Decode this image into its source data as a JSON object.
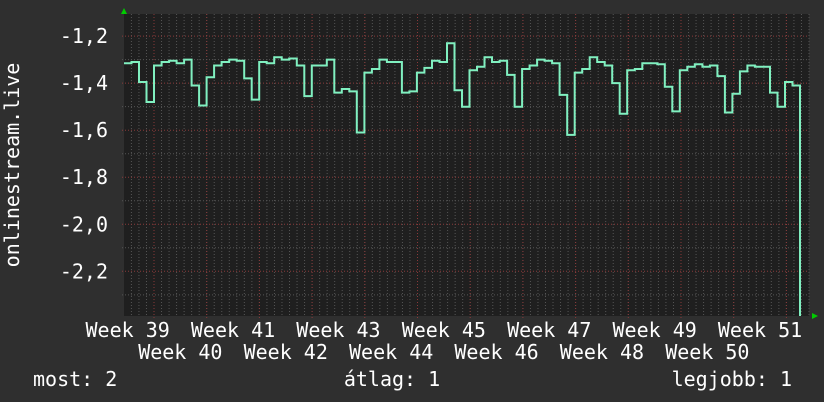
{
  "chart_data": {
    "type": "line",
    "title": "",
    "ylabel": "onlinestream.live",
    "xlabel": "",
    "ylim": [
      -2.39,
      -1.106
    ],
    "y_ticks": [
      -1.2,
      -1.4,
      -1.6,
      -1.8,
      -2.0,
      -2.2
    ],
    "y_tick_labels": [
      "-1,2",
      "-1,4",
      "-1,6",
      "-1,8",
      "-2,0",
      "-2,2"
    ],
    "x_tick_labels": [
      "Week 39",
      "Week 40",
      "Week 41",
      "Week 42",
      "Week 43",
      "Week 44",
      "Week 45",
      "Week 46",
      "Week 47",
      "Week 48",
      "Week 49",
      "Week 50",
      "Week 51"
    ],
    "grid": true,
    "step": true,
    "series": [
      {
        "color": "#80f0c0",
        "values": [
          -1.315,
          -1.31,
          -1.395,
          -1.48,
          -1.325,
          -1.31,
          -1.305,
          -1.315,
          -1.3,
          -1.41,
          -1.495,
          -1.375,
          -1.325,
          -1.31,
          -1.3,
          -1.305,
          -1.38,
          -1.47,
          -1.31,
          -1.315,
          -1.29,
          -1.3,
          -1.295,
          -1.325,
          -1.455,
          -1.325,
          -1.325,
          -1.3,
          -1.44,
          -1.425,
          -1.435,
          -1.61,
          -1.355,
          -1.34,
          -1.3,
          -1.31,
          -1.31,
          -1.44,
          -1.435,
          -1.355,
          -1.335,
          -1.305,
          -1.31,
          -1.23,
          -1.43,
          -1.5,
          -1.345,
          -1.33,
          -1.29,
          -1.31,
          -1.305,
          -1.365,
          -1.5,
          -1.34,
          -1.325,
          -1.3,
          -1.305,
          -1.315,
          -1.45,
          -1.62,
          -1.355,
          -1.34,
          -1.29,
          -1.31,
          -1.325,
          -1.4,
          -1.53,
          -1.345,
          -1.34,
          -1.315,
          -1.315,
          -1.32,
          -1.415,
          -1.52,
          -1.345,
          -1.33,
          -1.32,
          -1.33,
          -1.325,
          -1.37,
          -1.525,
          -1.445,
          -1.35,
          -1.325,
          -1.33,
          -1.33,
          -1.44,
          -1.5,
          -1.395,
          -1.41
        ],
        "final_value": -2.39
      }
    ]
  },
  "colors": {
    "background": "#2f2f2f",
    "canvas": "#1f1f1f",
    "major_grid": "#8a3a3a",
    "minor_grid": "#555555",
    "arrow": "#00cc00",
    "text": "#ffffff"
  },
  "legend": {
    "current": "most: 2",
    "average": "átlag: 1",
    "max": "legjobb: 1"
  }
}
